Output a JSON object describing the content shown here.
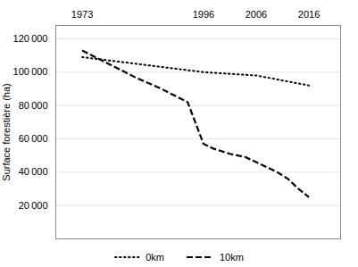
{
  "chart_data": {
    "type": "line",
    "ylabel": "Surface forestière (ha)",
    "series": [
      {
        "name": "0km",
        "color": "#000000",
        "line_style": "dotted",
        "x": [
          1973,
          1996,
          2006,
          2016
        ],
        "values": [
          109000,
          100000,
          98000,
          92000
        ]
      },
      {
        "name": " 10km",
        "color": "#000000",
        "line_style": "dashed",
        "x": [
          1973,
          1978,
          1983,
          1988,
          1993,
          1996,
          1998,
          2001,
          2004,
          2006,
          2008,
          2010,
          2012,
          2014,
          2016
        ],
        "values": [
          113000,
          105000,
          97000,
          90000,
          82000,
          57000,
          54000,
          51000,
          49000,
          46000,
          43000,
          40000,
          36000,
          30000,
          25000
        ]
      }
    ],
    "xlim": [
      1968,
      2022
    ],
    "xticks": [
      1973,
      1996,
      2006,
      2016
    ],
    "ylim": [
      0,
      128000
    ],
    "yticks": [
      {
        "value": 20000,
        "label": "20 000"
      },
      {
        "value": 40000,
        "label": "40 000"
      },
      {
        "value": 60000,
        "label": "60 000"
      },
      {
        "value": 80000,
        "label": "80 000"
      },
      {
        "value": 100000,
        "label": "100 000"
      },
      {
        "value": 120000,
        "label": "120 000"
      }
    ],
    "grid": true,
    "legend": "bottom"
  }
}
